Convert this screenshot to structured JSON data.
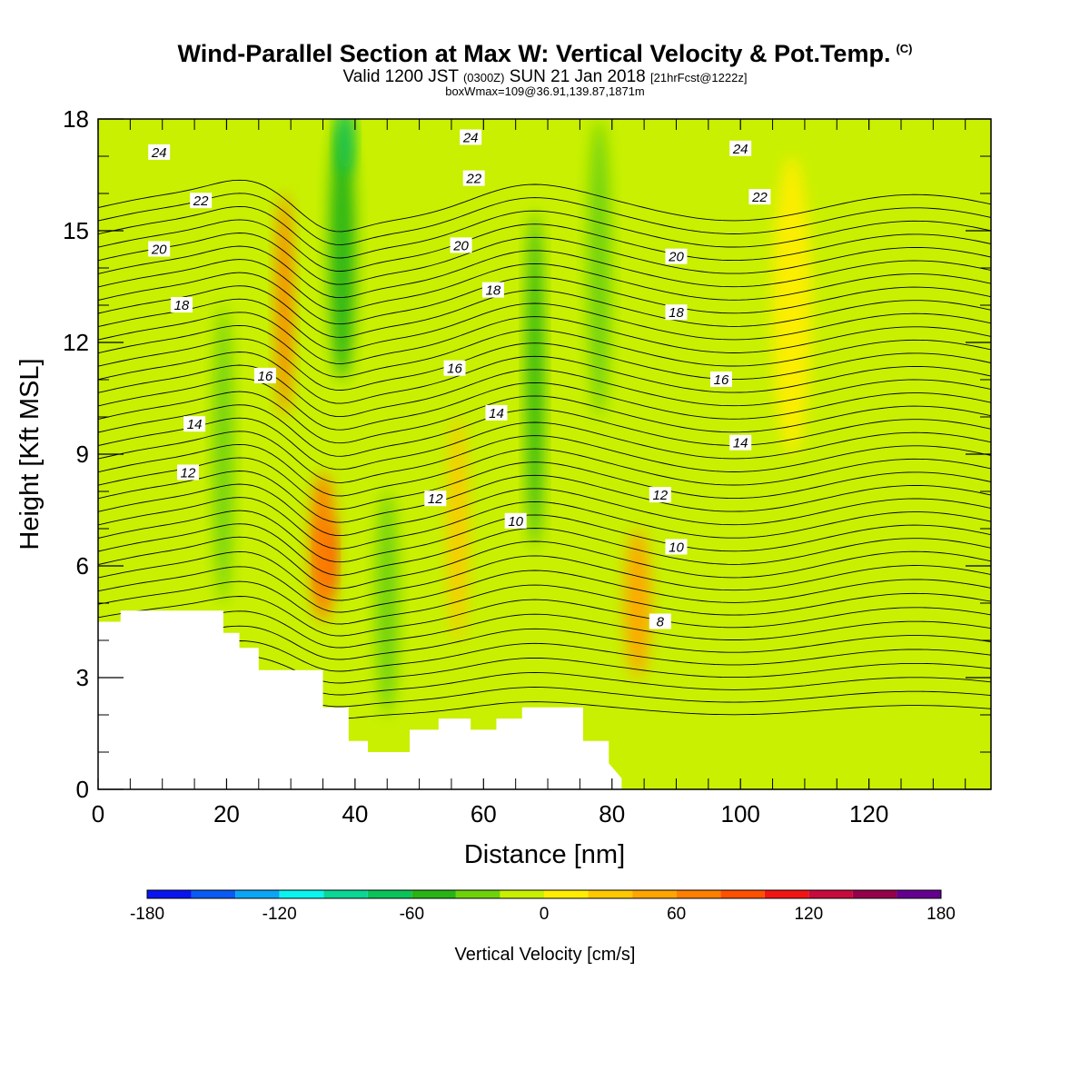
{
  "header": {
    "title": "Wind-Parallel Section at Max W: Vertical Velocity & Pot.Temp.",
    "copyright": "(C)",
    "valid_prefix": "Valid 1200 JST",
    "valid_utc": "(0300Z)",
    "valid_date": "SUN 21 Jan 2018",
    "forecast": "[21hrFcst@1222z]",
    "box_info": "boxWmax=109@36.91,139.87,1871m"
  },
  "chart_data": {
    "type": "heatmap",
    "xlabel": "Distance [nm]",
    "ylabel": "Height [Kft MSL]",
    "xlim": [
      0,
      139
    ],
    "ylim": [
      0,
      18
    ],
    "x_ticks": [
      0,
      20,
      40,
      60,
      80,
      100,
      120
    ],
    "y_ticks": [
      0,
      3,
      6,
      9,
      12,
      15,
      18
    ],
    "colorbar": {
      "title": "Vertical Velocity [cm/s]",
      "min": -180,
      "max": 180,
      "step": 20,
      "tick_labels": [
        -180,
        -120,
        -60,
        0,
        60,
        120,
        180
      ],
      "colors": [
        "#0a14f0",
        "#0a5af5",
        "#0aa5f5",
        "#0af5f0",
        "#0ad696",
        "#0ac35a",
        "#28b414",
        "#6ed20a",
        "#c8f000",
        "#ffee00",
        "#ffc800",
        "#ffa500",
        "#ff7f00",
        "#ff5000",
        "#f51414",
        "#c80a3c",
        "#96004b",
        "#640090"
      ]
    },
    "velocity_features": [
      {
        "x": 35.5,
        "y": 6.2,
        "w": 2.3,
        "h": 2.0,
        "value": 110
      },
      {
        "x": 35.0,
        "y": 6.5,
        "w": 4.0,
        "h": 4.0,
        "value": 70
      },
      {
        "x": 29.0,
        "y": 13.0,
        "w": 2.5,
        "h": 6.0,
        "value": 60
      },
      {
        "x": 38.0,
        "y": 14.5,
        "w": 4.0,
        "h": 7.0,
        "value": -60
      },
      {
        "x": 38.5,
        "y": 17.5,
        "w": 2.5,
        "h": 2.0,
        "value": -80
      },
      {
        "x": 68.0,
        "y": 11.0,
        "w": 2.5,
        "h": 9.0,
        "value": -55
      },
      {
        "x": 84.0,
        "y": 5.0,
        "w": 4.0,
        "h": 4.0,
        "value": 40
      },
      {
        "x": 19.5,
        "y": 9.0,
        "w": 3.0,
        "h": 8.0,
        "value": -35
      },
      {
        "x": 45.0,
        "y": 5.0,
        "w": 3.5,
        "h": 6.0,
        "value": -40
      },
      {
        "x": 78.0,
        "y": 14.0,
        "w": 3.5,
        "h": 8.0,
        "value": -35
      },
      {
        "x": 56.0,
        "y": 7.0,
        "w": 3.0,
        "h": 6.0,
        "value": 25
      },
      {
        "x": 108.0,
        "y": 13.0,
        "w": 6.0,
        "h": 8.0,
        "value": 15
      }
    ],
    "terrain": {
      "x": [
        0,
        3.5,
        3.5,
        19.5,
        19.5,
        22,
        22,
        25,
        25,
        35,
        35,
        39,
        39,
        42,
        42,
        46,
        46,
        48.5,
        48.5,
        53,
        53,
        58,
        58,
        62,
        62,
        66,
        66,
        71,
        71,
        75.5,
        75.5,
        79.5,
        79.5,
        81.5
      ],
      "y": [
        4.5,
        4.5,
        4.8,
        4.8,
        4.2,
        4.2,
        3.8,
        3.8,
        3.2,
        3.2,
        2.2,
        2.2,
        1.3,
        1.3,
        1.0,
        1.0,
        1.0,
        1.0,
        1.6,
        1.6,
        1.9,
        1.9,
        1.6,
        1.6,
        1.9,
        1.9,
        2.2,
        2.2,
        2.2,
        2.2,
        1.3,
        1.3,
        0.7,
        0.3
      ]
    },
    "theta_contours": [
      {
        "value": 8,
        "label_x": 87.5,
        "label_y": 4.5
      },
      {
        "value": 10,
        "label_x": 65,
        "label_y": 7.2
      },
      {
        "value": 10,
        "label_x": 90,
        "label_y": 6.5
      },
      {
        "value": 12,
        "label_x": 14,
        "label_y": 8.5
      },
      {
        "value": 12,
        "label_x": 52.5,
        "label_y": 7.8
      },
      {
        "value": 12,
        "label_x": 87.5,
        "label_y": 7.9
      },
      {
        "value": 14,
        "label_x": 15,
        "label_y": 9.8
      },
      {
        "value": 14,
        "label_x": 62,
        "label_y": 10.1
      },
      {
        "value": 14,
        "label_x": 100,
        "label_y": 9.3
      },
      {
        "value": 16,
        "label_x": 26,
        "label_y": 11.1
      },
      {
        "value": 16,
        "label_x": 55.5,
        "label_y": 11.3
      },
      {
        "value": 16,
        "label_x": 97,
        "label_y": 11.0
      },
      {
        "value": 18,
        "label_x": 13,
        "label_y": 13.0
      },
      {
        "value": 18,
        "label_x": 61.5,
        "label_y": 13.4
      },
      {
        "value": 18,
        "label_x": 90,
        "label_y": 12.8
      },
      {
        "value": 20,
        "label_x": 9.5,
        "label_y": 14.5
      },
      {
        "value": 20,
        "label_x": 56.5,
        "label_y": 14.6
      },
      {
        "value": 20,
        "label_x": 90,
        "label_y": 14.3
      },
      {
        "value": 22,
        "label_x": 16,
        "label_y": 15.8
      },
      {
        "value": 22,
        "label_x": 58.5,
        "label_y": 16.4
      },
      {
        "value": 22,
        "label_x": 103,
        "label_y": 15.9
      },
      {
        "value": 24,
        "label_x": 9.5,
        "label_y": 17.1
      },
      {
        "value": 24,
        "label_x": 58,
        "label_y": 17.5
      },
      {
        "value": 24,
        "label_x": 100,
        "label_y": 17.2
      }
    ]
  }
}
